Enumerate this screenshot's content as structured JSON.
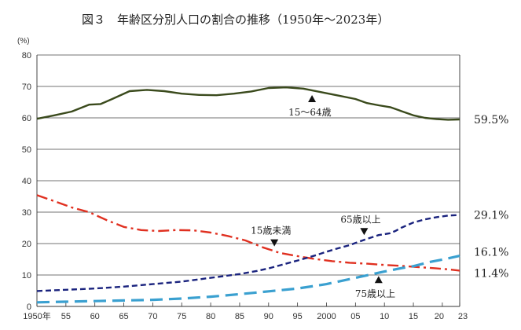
{
  "chart_data": {
    "type": "line",
    "title": "図３　年齢区分別人口の割合の推移（1950年～2023年）",
    "y_unit": "(%)",
    "ylim": [
      0,
      80
    ],
    "y_ticks": [
      "0",
      "10",
      "20",
      "30",
      "40",
      "50",
      "60",
      "70",
      "80"
    ],
    "xlim": [
      1950,
      2023
    ],
    "x_ticks": [
      {
        "value": 1950,
        "label": "1950年"
      },
      {
        "value": 1955,
        "label": "55"
      },
      {
        "value": 1960,
        "label": "60"
      },
      {
        "value": 1965,
        "label": "65"
      },
      {
        "value": 1970,
        "label": "70"
      },
      {
        "value": 1975,
        "label": "75"
      },
      {
        "value": 1980,
        "label": "80"
      },
      {
        "value": 1985,
        "label": "85"
      },
      {
        "value": 1990,
        "label": "90"
      },
      {
        "value": 1995,
        "label": "95"
      },
      {
        "value": 2000,
        "label": "2000"
      },
      {
        "value": 2005,
        "label": "05"
      },
      {
        "value": 2010,
        "label": "10"
      },
      {
        "value": 2015,
        "label": "15"
      },
      {
        "value": 2020,
        "label": "20"
      },
      {
        "value": 2023,
        "label": "23"
      }
    ],
    "grid": "horizontal",
    "series": [
      {
        "name": "15～64歳",
        "color": "#3a4a1c",
        "style": "solid",
        "end_label": "59.5%",
        "points": [
          [
            1950,
            59.7
          ],
          [
            1953,
            60.8
          ],
          [
            1956,
            62.0
          ],
          [
            1959,
            64.2
          ],
          [
            1961,
            64.4
          ],
          [
            1963,
            66.0
          ],
          [
            1966,
            68.5
          ],
          [
            1969,
            68.9
          ],
          [
            1972,
            68.5
          ],
          [
            1975,
            67.7
          ],
          [
            1978,
            67.3
          ],
          [
            1981,
            67.2
          ],
          [
            1984,
            67.7
          ],
          [
            1987,
            68.4
          ],
          [
            1990,
            69.5
          ],
          [
            1993,
            69.7
          ],
          [
            1996,
            69.3
          ],
          [
            1999,
            68.2
          ],
          [
            2002,
            67.1
          ],
          [
            2005,
            66.0
          ],
          [
            2007,
            64.7
          ],
          [
            2009,
            64.0
          ],
          [
            2011,
            63.4
          ],
          [
            2013,
            62.1
          ],
          [
            2015,
            60.8
          ],
          [
            2017,
            60.0
          ],
          [
            2019,
            59.6
          ],
          [
            2021,
            59.4
          ],
          [
            2023,
            59.5
          ]
        ]
      },
      {
        "name": "15歳未満",
        "color": "#e03020",
        "style": "dashdot",
        "end_label": "11.4%",
        "points": [
          [
            1950,
            35.4
          ],
          [
            1953,
            33.5
          ],
          [
            1956,
            31.5
          ],
          [
            1959,
            30.0
          ],
          [
            1962,
            27.5
          ],
          [
            1965,
            25.3
          ],
          [
            1968,
            24.3
          ],
          [
            1971,
            24.0
          ],
          [
            1974,
            24.3
          ],
          [
            1977,
            24.2
          ],
          [
            1980,
            23.5
          ],
          [
            1983,
            22.4
          ],
          [
            1986,
            21.0
          ],
          [
            1989,
            18.8
          ],
          [
            1992,
            17.0
          ],
          [
            1995,
            16.0
          ],
          [
            1998,
            15.1
          ],
          [
            2001,
            14.4
          ],
          [
            2004,
            13.9
          ],
          [
            2007,
            13.6
          ],
          [
            2010,
            13.2
          ],
          [
            2013,
            12.9
          ],
          [
            2016,
            12.5
          ],
          [
            2019,
            12.1
          ],
          [
            2021,
            11.8
          ],
          [
            2023,
            11.4
          ]
        ]
      },
      {
        "name": "65歳以上",
        "color": "#1a237e",
        "style": "dashed",
        "end_label": "29.1%",
        "points": [
          [
            1950,
            4.9
          ],
          [
            1955,
            5.3
          ],
          [
            1960,
            5.7
          ],
          [
            1965,
            6.3
          ],
          [
            1970,
            7.1
          ],
          [
            1975,
            7.9
          ],
          [
            1980,
            9.1
          ],
          [
            1985,
            10.3
          ],
          [
            1988,
            11.3
          ],
          [
            1990,
            12.1
          ],
          [
            1992,
            13.1
          ],
          [
            1995,
            14.6
          ],
          [
            1998,
            16.2
          ],
          [
            2000,
            17.4
          ],
          [
            2002,
            18.5
          ],
          [
            2004,
            19.5
          ],
          [
            2005,
            20.2
          ],
          [
            2007,
            21.5
          ],
          [
            2009,
            22.7
          ],
          [
            2011,
            23.3
          ],
          [
            2012,
            24.1
          ],
          [
            2013,
            25.1
          ],
          [
            2015,
            26.7
          ],
          [
            2017,
            27.7
          ],
          [
            2019,
            28.4
          ],
          [
            2021,
            28.9
          ],
          [
            2023,
            29.1
          ]
        ]
      },
      {
        "name": "75歳以上",
        "color": "#3aa0d0",
        "style": "longdash",
        "end_label": "16.1%",
        "points": [
          [
            1950,
            1.3
          ],
          [
            1955,
            1.5
          ],
          [
            1960,
            1.7
          ],
          [
            1965,
            1.9
          ],
          [
            1970,
            2.1
          ],
          [
            1975,
            2.5
          ],
          [
            1980,
            3.1
          ],
          [
            1985,
            3.9
          ],
          [
            1990,
            4.8
          ],
          [
            1995,
            5.7
          ],
          [
            2000,
            7.1
          ],
          [
            2005,
            9.1
          ],
          [
            2010,
            11.1
          ],
          [
            2013,
            12.2
          ],
          [
            2015,
            12.8
          ],
          [
            2018,
            14.2
          ],
          [
            2020,
            14.9
          ],
          [
            2023,
            16.1
          ]
        ]
      }
    ],
    "annotations": [
      {
        "text": "15～64歳",
        "series": 0,
        "arrow_x": 1997.5
      },
      {
        "text": "15歳未満",
        "series": 1,
        "arrow_x": 1991
      },
      {
        "text": "65歳以上",
        "series": 2,
        "arrow_x": 2006.5
      },
      {
        "text": "75歳以上",
        "series": 3,
        "arrow_x": 2009
      }
    ]
  }
}
